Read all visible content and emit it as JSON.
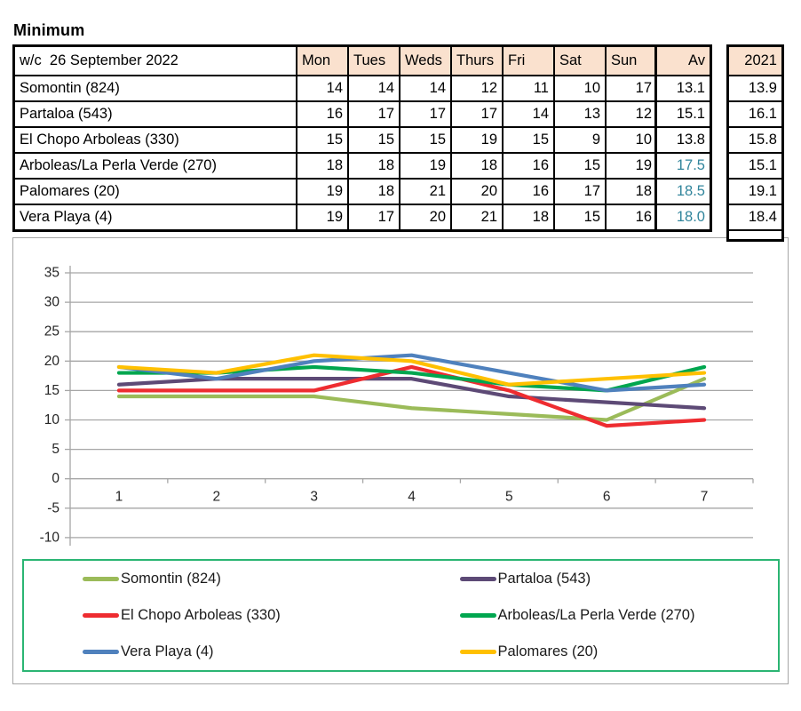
{
  "title": "Minimum",
  "table": {
    "week_label": "w/c  26 September 2022",
    "days": [
      "Mon",
      "Tues",
      "Weds",
      "Thurs",
      "Fri",
      "Sat",
      "Sun"
    ],
    "av_label": "Av",
    "year_label": "2021",
    "rows": [
      {
        "name": "Somontin (824)",
        "values": [
          14,
          14,
          14,
          12,
          11,
          10,
          17
        ],
        "av": "13.1",
        "av_highlight": false,
        "prev": "13.9"
      },
      {
        "name": "Partaloa (543)",
        "values": [
          16,
          17,
          17,
          17,
          14,
          13,
          12
        ],
        "av": "15.1",
        "av_highlight": false,
        "prev": "16.1"
      },
      {
        "name": "El Chopo Arboleas (330)",
        "values": [
          15,
          15,
          15,
          19,
          15,
          9,
          10
        ],
        "av": "13.8",
        "av_highlight": false,
        "prev": "15.8"
      },
      {
        "name": "Arboleas/La Perla Verde (270)",
        "values": [
          18,
          18,
          19,
          18,
          16,
          15,
          19
        ],
        "av": "17.5",
        "av_highlight": true,
        "prev": "15.1"
      },
      {
        "name": "Palomares (20)",
        "values": [
          19,
          18,
          21,
          20,
          16,
          17,
          18
        ],
        "av": "18.5",
        "av_highlight": true,
        "prev": "19.1"
      },
      {
        "name": "Vera Playa (4)",
        "values": [
          19,
          17,
          20,
          21,
          18,
          15,
          16
        ],
        "av": "18.0",
        "av_highlight": true,
        "prev": "18.4"
      }
    ]
  },
  "colors": {
    "header_fill": "#fae1ce",
    "av_accent_text": "#31859c",
    "grid_line": "#a6a6a6",
    "axis_text": "#262626",
    "legend_border": "#2bb573",
    "table_border": "#000000"
  },
  "chart_data": {
    "type": "line",
    "title": "",
    "xlabel": "",
    "ylabel": "",
    "x": [
      1,
      2,
      3,
      4,
      5,
      6,
      7
    ],
    "xtick_labels": [
      "1",
      "2",
      "3",
      "4",
      "5",
      "6",
      "7"
    ],
    "ylim": [
      -10,
      35
    ],
    "ytick_step": 5,
    "ytick_labels": [
      "35",
      "30",
      "25",
      "20",
      "15",
      "10",
      "5",
      "0",
      "-5",
      "-10"
    ],
    "grid": true,
    "legend_position": "bottom",
    "series": [
      {
        "name": "Somontin (824)",
        "color": "#9bbb59",
        "values": [
          14,
          14,
          14,
          12,
          11,
          10,
          17
        ]
      },
      {
        "name": "Partaloa (543)",
        "color": "#5d4a76",
        "values": [
          16,
          17,
          17,
          17,
          14,
          13,
          12
        ]
      },
      {
        "name": "El Chopo Arboleas (330)",
        "color": "#ee2c30",
        "values": [
          15,
          15,
          15,
          19,
          15,
          9,
          10
        ]
      },
      {
        "name": "Arboleas/La Perla Verde (270)",
        "color": "#00a64f",
        "values": [
          18,
          18,
          19,
          18,
          16,
          15,
          19
        ]
      },
      {
        "name": "Vera Playa (4)",
        "color": "#4f81bd",
        "values": [
          19,
          17,
          20,
          21,
          18,
          15,
          16
        ]
      },
      {
        "name": "Palomares (20)",
        "color": "#ffc000",
        "values": [
          19,
          18,
          21,
          20,
          16,
          17,
          18
        ]
      }
    ]
  }
}
